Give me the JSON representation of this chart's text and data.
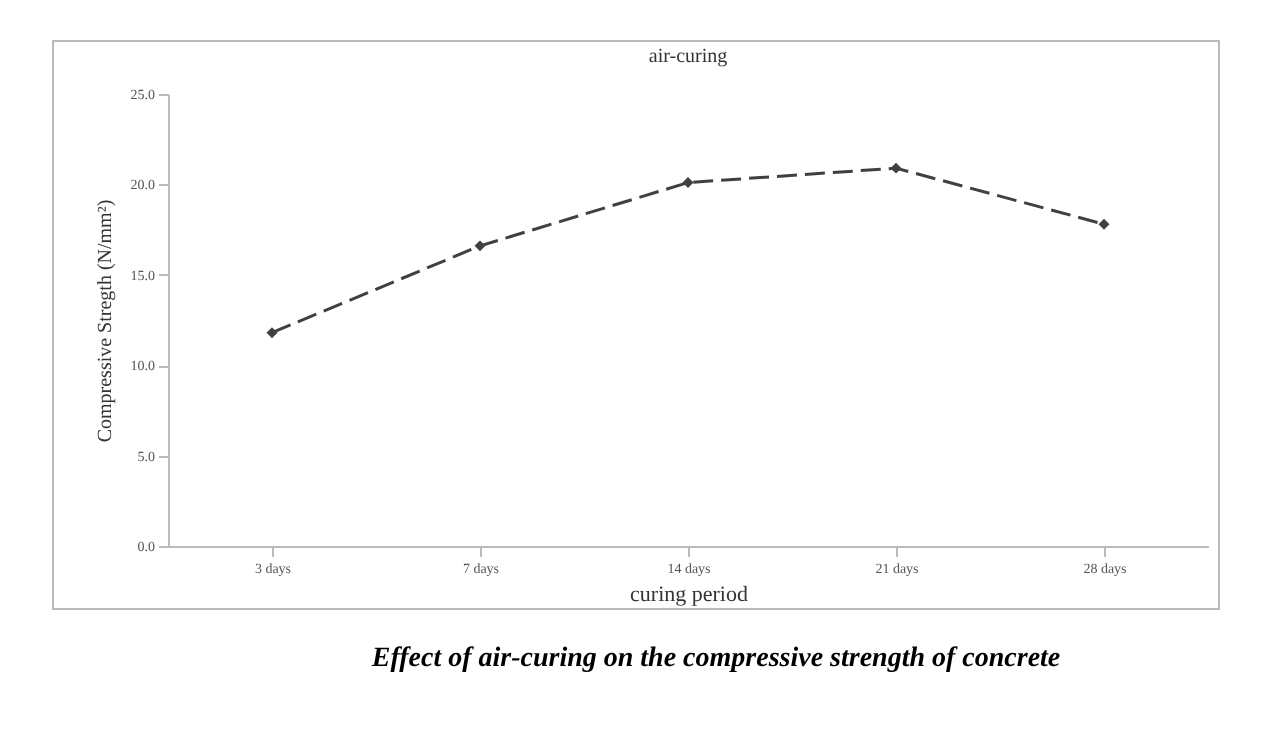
{
  "chart_data": {
    "type": "line",
    "title": "air-curing",
    "xlabel": "curing period",
    "ylabel": "Compressive Stregth (N/mm²)",
    "categories": [
      "3 days",
      "7 days",
      "14 days",
      "21 days",
      "28 days"
    ],
    "series": [
      {
        "color": "#404040",
        "values": [
          11.8,
          16.6,
          20.1,
          20.9,
          17.8
        ]
      }
    ],
    "ylim": [
      0,
      25
    ],
    "yticks": [
      {
        "value": 0,
        "label": "0.0"
      },
      {
        "value": 5,
        "label": "5.0"
      },
      {
        "value": 10,
        "label": "10.0"
      },
      {
        "value": 15,
        "label": "15.0"
      },
      {
        "value": 20,
        "label": "20.0"
      },
      {
        "value": 25,
        "label": "25.0"
      }
    ],
    "grid": false,
    "marker": "diamond",
    "line_style": "dashed",
    "annotations": [
      "Effect of air-curing on the compressive strength of concrete"
    ]
  }
}
